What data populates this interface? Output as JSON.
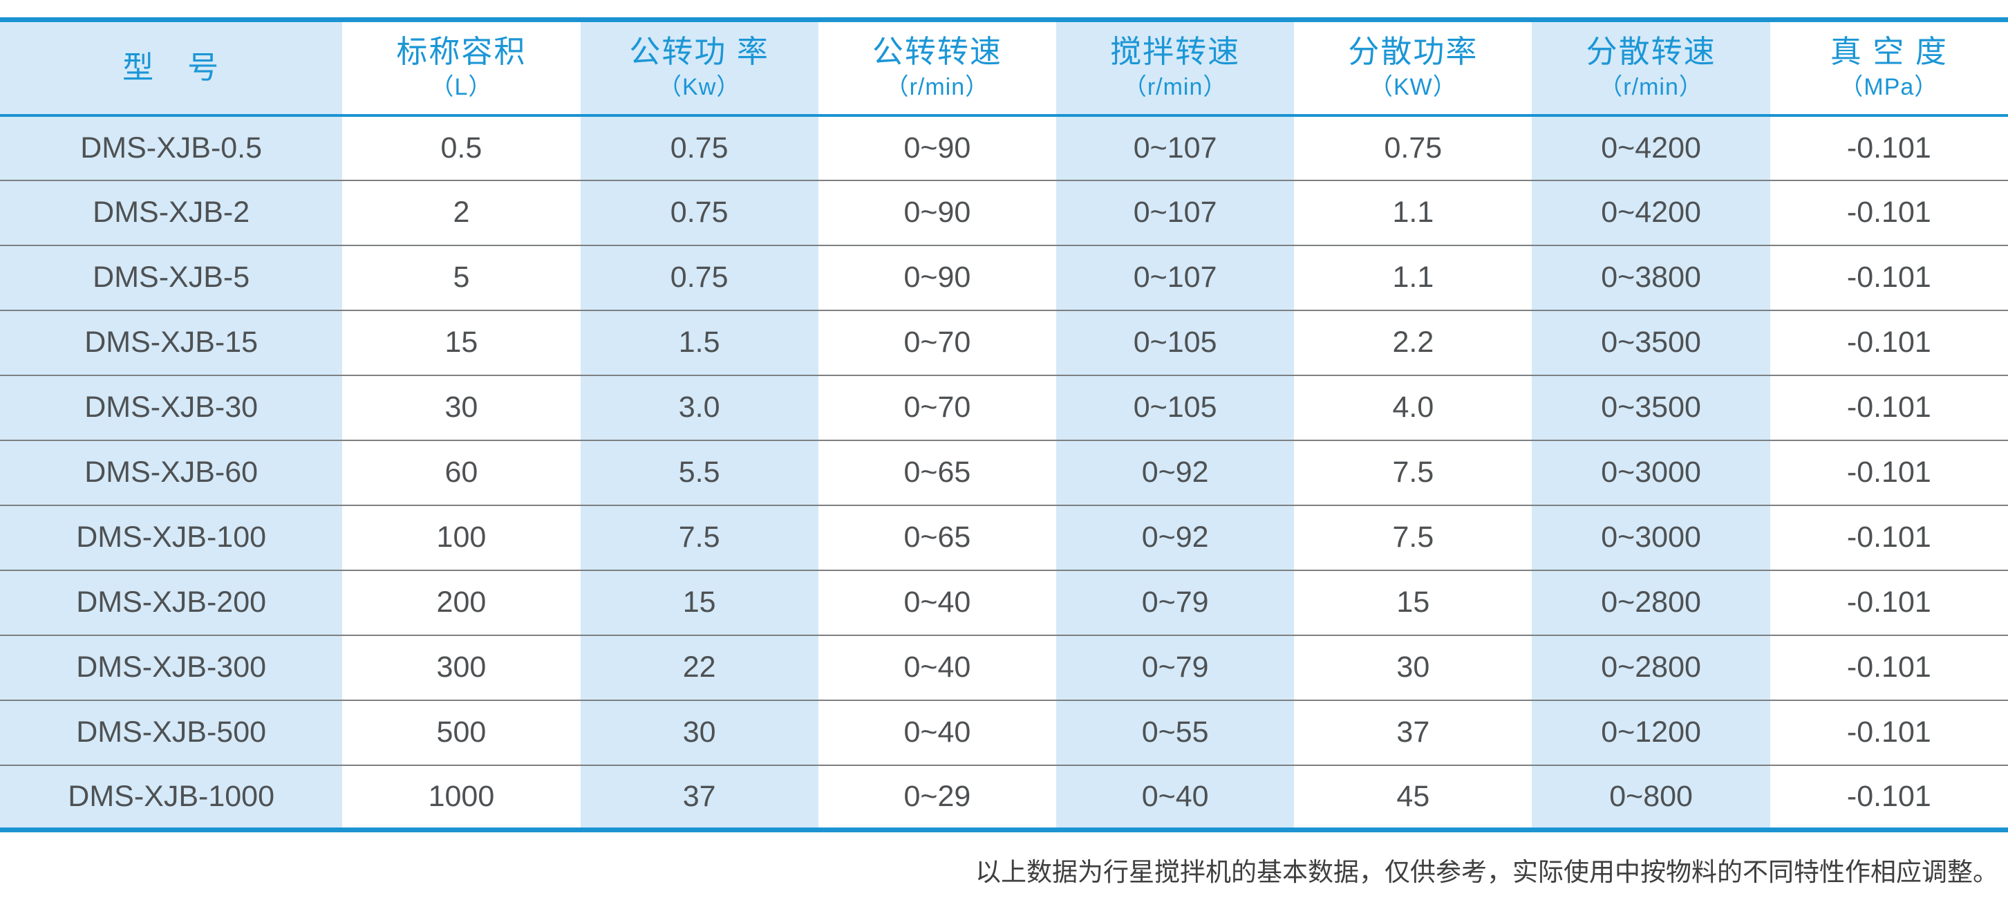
{
  "table": {
    "columns": [
      {
        "title": "型　号",
        "unit": ""
      },
      {
        "title": "标称容积",
        "unit": "（L）"
      },
      {
        "title": "公转功 率",
        "unit": "（Kw）"
      },
      {
        "title": "公转转速",
        "unit": "（r/min）"
      },
      {
        "title": "搅拌转速",
        "unit": "（r/min）"
      },
      {
        "title": "分散功率",
        "unit": "（KW）"
      },
      {
        "title": "分散转速",
        "unit": "（r/min）"
      },
      {
        "title": "真 空 度",
        "unit": "（MPa）"
      }
    ],
    "rows": [
      [
        "DMS-XJB-0.5",
        "0.5",
        "0.75",
        "0~90",
        "0~107",
        "0.75",
        "0~4200",
        "-0.101"
      ],
      [
        "DMS-XJB-2",
        "2",
        "0.75",
        "0~90",
        "0~107",
        "1.1",
        "0~4200",
        "-0.101"
      ],
      [
        "DMS-XJB-5",
        "5",
        "0.75",
        "0~90",
        "0~107",
        "1.1",
        "0~3800",
        "-0.101"
      ],
      [
        "DMS-XJB-15",
        "15",
        "1.5",
        "0~70",
        "0~105",
        "2.2",
        "0~3500",
        "-0.101"
      ],
      [
        "DMS-XJB-30",
        "30",
        "3.0",
        "0~70",
        "0~105",
        "4.0",
        "0~3500",
        "-0.101"
      ],
      [
        "DMS-XJB-60",
        "60",
        "5.5",
        "0~65",
        "0~92",
        "7.5",
        "0~3000",
        "-0.101"
      ],
      [
        "DMS-XJB-100",
        "100",
        "7.5",
        "0~65",
        "0~92",
        "7.5",
        "0~3000",
        "-0.101"
      ],
      [
        "DMS-XJB-200",
        "200",
        "15",
        "0~40",
        "0~79",
        "15",
        "0~2800",
        "-0.101"
      ],
      [
        "DMS-XJB-300",
        "300",
        "22",
        "0~40",
        "0~79",
        "30",
        "0~2800",
        "-0.101"
      ],
      [
        "DMS-XJB-500",
        "500",
        "30",
        "0~40",
        "0~55",
        "37",
        "0~1200",
        "-0.101"
      ],
      [
        "DMS-XJB-1000",
        "1000",
        "37",
        "0~29",
        "0~40",
        "45",
        "0~800",
        "-0.101"
      ]
    ]
  },
  "footnote": "以上数据为行星搅拌机的基本数据，仅供参考，实际使用中按物料的不同特性作相应调整。",
  "colors": {
    "accent_blue": "#1b93d2",
    "stripe_blue": "#d5e9f8",
    "header_text": "#1b96d6",
    "body_text": "#4e5153",
    "row_divider": "#7d7f81",
    "footnote_text": "#3f3f3f"
  }
}
